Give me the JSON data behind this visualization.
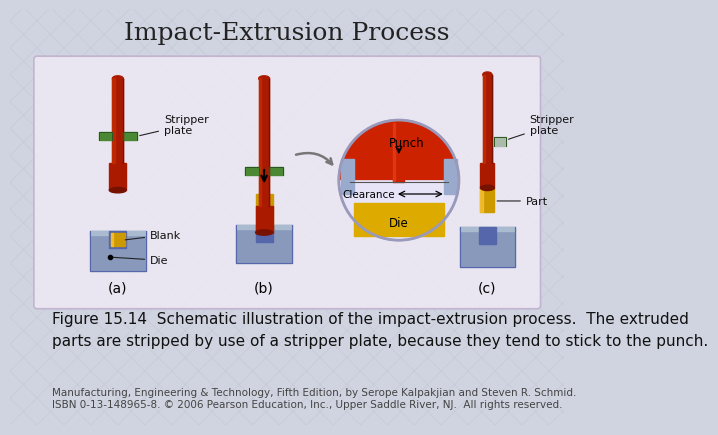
{
  "title": "Impact-Extrusion Process",
  "title_fontsize": 18,
  "title_color": "#222222",
  "bg_color": "#d0d4e0",
  "inner_box_facecolor": "#ece8f4",
  "inner_box_edgecolor": "#c0b0cc",
  "caption_text": "Figure 15.14  Schematic illustration of the impact-extrusion process.  The extruded\nparts are stripped by use of a stripper plate, because they tend to stick to the punch.",
  "caption_fontsize": 11,
  "caption_color": "#111111",
  "footer_line1": "Manufacturing, Engineering & Technology, Fifth Edition, by Serope Kalpakjian and Steven R. Schmid.",
  "footer_line2": "ISBN 0-13-148965-8. © 2006 Pearson Education, Inc., Upper Saddle River, NJ.  All rights reserved.",
  "footer_fontsize": 7.5,
  "footer_color": "#444444",
  "label_fontsize": 10,
  "punch_red": "#aa1a00",
  "punch_dark": "#771100",
  "punch_sheen": "#cc3300",
  "die_blue": "#8899bb",
  "die_blue_dark": "#5566aa",
  "die_blue_light": "#aabbd0",
  "blank_gold": "#cc9900",
  "blank_gold_dark": "#aa7700",
  "stripper_green": "#4a8833",
  "stripper_green_dark": "#2a5522",
  "circle_red": "#cc2200",
  "circle_gold": "#ddaa00",
  "circle_blue": "#99aacc",
  "circle_bg": "#e8e4f8",
  "arrow_color": "#777777"
}
